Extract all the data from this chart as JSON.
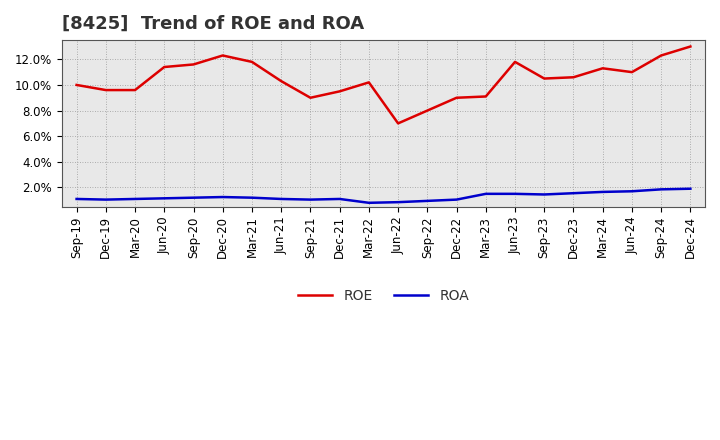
{
  "title": "[8425]  Trend of ROE and ROA",
  "x_labels": [
    "Sep-19",
    "Dec-19",
    "Mar-20",
    "Jun-20",
    "Sep-20",
    "Dec-20",
    "Mar-21",
    "Jun-21",
    "Sep-21",
    "Dec-21",
    "Mar-22",
    "Jun-22",
    "Sep-22",
    "Dec-22",
    "Mar-23",
    "Jun-23",
    "Sep-23",
    "Dec-23",
    "Mar-24",
    "Jun-24",
    "Sep-24",
    "Dec-24"
  ],
  "roe": [
    10.0,
    9.6,
    9.6,
    11.4,
    11.6,
    12.3,
    11.8,
    10.3,
    9.0,
    9.5,
    10.2,
    7.0,
    8.0,
    9.0,
    9.1,
    11.8,
    10.5,
    10.6,
    11.3,
    11.0,
    12.3,
    13.0
  ],
  "roa": [
    1.1,
    1.05,
    1.1,
    1.15,
    1.2,
    1.25,
    1.2,
    1.1,
    1.05,
    1.1,
    0.8,
    0.85,
    0.95,
    1.05,
    1.5,
    1.5,
    1.45,
    1.55,
    1.65,
    1.7,
    1.85,
    1.9
  ],
  "roe_color": "#dd0000",
  "roa_color": "#0000cc",
  "background_color": "#ffffff",
  "grid_color": "#999999",
  "plot_bg_color": "#e8e8e8",
  "ylim_min": 0.5,
  "ylim_max": 13.5,
  "yticks": [
    2.0,
    4.0,
    6.0,
    8.0,
    10.0,
    12.0
  ],
  "legend_roe": "ROE",
  "legend_roa": "ROA",
  "title_fontsize": 13,
  "tick_fontsize": 8.5,
  "legend_fontsize": 10
}
